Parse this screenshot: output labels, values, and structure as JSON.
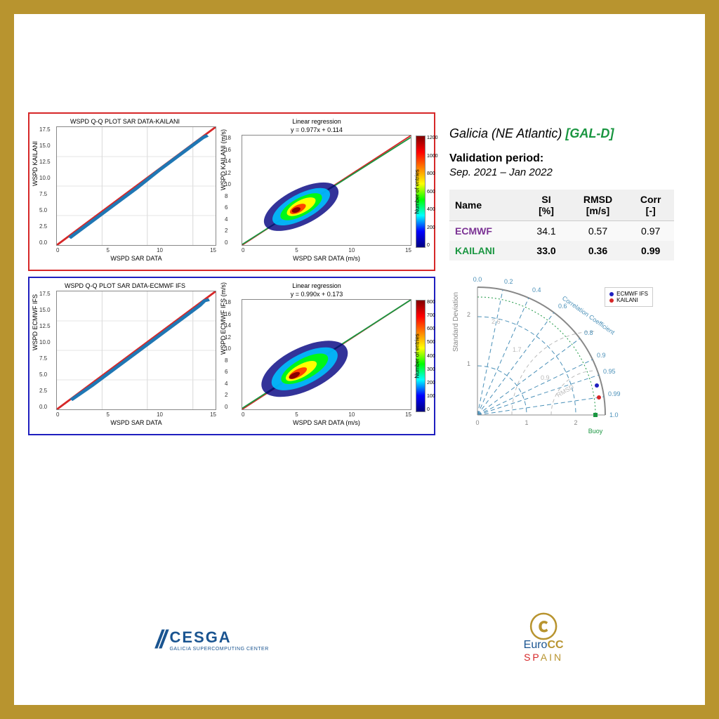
{
  "region": {
    "name": "Galicia (NE Atlantic)",
    "code": "[GAL-D]"
  },
  "validation": {
    "label": "Validation period:",
    "period": "Sep. 2021 – Jan 2022"
  },
  "stats": {
    "headers": [
      "Name",
      "SI\n[%]",
      "RMSD\n[m/s]",
      "Corr\n[-]"
    ],
    "rows": [
      {
        "name": "ECMWF",
        "si": "34.1",
        "rmsd": "0.57",
        "corr": "0.97",
        "color": "#7b3294"
      },
      {
        "name": "KAILANI",
        "si": "33.0",
        "rmsd": "0.36",
        "corr": "0.99",
        "color": "#1a9641"
      }
    ]
  },
  "panel_top": {
    "border_color": "#d62728",
    "qq": {
      "title": "WSPD Q-Q PLOT SAR DATA-KAILANI",
      "ylabel": "WSPD KAILANI",
      "xlabel": "WSPD SAR DATA",
      "xlim": [
        0,
        17.5
      ],
      "ylim": [
        0,
        17.5
      ],
      "yticks": [
        "0.0",
        "2.5",
        "5.0",
        "7.5",
        "10.0",
        "12.5",
        "15.0",
        "17.5"
      ],
      "xticks": [
        "0",
        "5",
        "10",
        "15"
      ],
      "line_color": "#d62728",
      "point_color": "#1f77b4"
    },
    "density": {
      "title": "Linear regression",
      "equation": "y = 0.977x + 0.114",
      "ylabel": "WSPD KAILANI (m/s)",
      "xlabel": "WSPD SAR DATA (m/s)",
      "xlim": [
        0,
        18
      ],
      "ylim": [
        0,
        18
      ],
      "yticks": [
        "0",
        "2",
        "4",
        "6",
        "8",
        "10",
        "12",
        "14",
        "16",
        "18"
      ],
      "xticks": [
        "0",
        "5",
        "10",
        "15"
      ],
      "cbar_label": "Number of entries",
      "cbar_ticks": [
        "0",
        "200",
        "400",
        "600",
        "800",
        "1000",
        "1200"
      ],
      "cbar_max": 1300
    }
  },
  "panel_bottom": {
    "border_color": "#1f1fbf",
    "qq": {
      "title": "WSPD Q-Q PLOT SAR DATA-ECMWF IFS",
      "ylabel": "WSPD ECMWF IFS",
      "xlabel": "WSPD SAR DATA",
      "xlim": [
        0,
        17.5
      ],
      "ylim": [
        0,
        17.5
      ],
      "yticks": [
        "0.0",
        "2.5",
        "5.0",
        "7.5",
        "10.0",
        "12.5",
        "15.0",
        "17.5"
      ],
      "xticks": [
        "0",
        "5",
        "10",
        "15"
      ],
      "line_color": "#d62728",
      "point_color": "#1f77b4"
    },
    "density": {
      "title": "Linear regression",
      "equation": "y = 0.990x + 0.173",
      "ylabel": "WSPD ECMWF IFS (m/s)",
      "xlabel": "WSPD SAR DATA (m/s)",
      "xlim": [
        0,
        18
      ],
      "ylim": [
        0,
        18
      ],
      "yticks": [
        "0",
        "2",
        "4",
        "6",
        "8",
        "10",
        "12",
        "14",
        "16",
        "18"
      ],
      "xticks": [
        "0",
        "5",
        "10",
        "15"
      ],
      "cbar_label": "Number of entries",
      "cbar_ticks": [
        "0",
        "100",
        "200",
        "300",
        "400",
        "500",
        "600",
        "700",
        "800"
      ],
      "cbar_max": 850
    }
  },
  "taylor": {
    "ylabel": "Standard Deviation",
    "corr_label": "Correlation Coefficient",
    "corr_ticks": [
      "0.0",
      "0.2",
      "0.4",
      "0.6",
      "0.8",
      "0.9",
      "0.95",
      "0.99",
      "1.0"
    ],
    "rmsd_label": "RMSD",
    "rmsd_rings": [
      "0.9",
      "1.7",
      "2.6"
    ],
    "std_ticks": [
      "0",
      "1",
      "2"
    ],
    "ref_label": "Buoy",
    "legend": [
      {
        "label": "ECMWF IFS",
        "color": "#1f1fbf"
      },
      {
        "label": "KAILANI",
        "color": "#d62728"
      }
    ],
    "arc_color": "#4a90b8",
    "ref_arc_color": "#1a9641"
  },
  "logos": {
    "cesga": {
      "name": "CESGA",
      "sub": "GALICIA SUPERCOMPUTING CENTER"
    },
    "eurocc": {
      "name_a": "Euro",
      "name_b": "CC",
      "spain_a": "SP",
      "spain_b": "AIN"
    }
  }
}
